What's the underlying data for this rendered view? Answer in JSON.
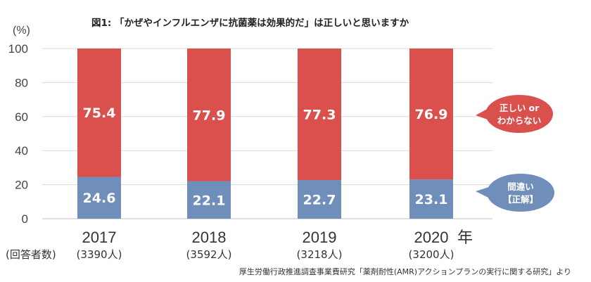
{
  "chart_data": {
    "type": "bar",
    "stacked": true,
    "title": "図1: 「かぜやインフルエンザに抗菌薬は効果的だ」は正しいと思いますか",
    "ylabel": "(%)",
    "ylim": [
      0,
      100
    ],
    "yticks": [
      "0",
      "20",
      "40",
      "60",
      "80",
      "100"
    ],
    "grid": true,
    "categories": [
      "2017",
      "2018",
      "2019",
      "2020"
    ],
    "x_unit": "年",
    "respondents_label": "(回答者数)",
    "respondents": [
      "(3390人)",
      "(3592人)",
      "(3218人)",
      "(3200人)"
    ],
    "series": [
      {
        "id": "wrong",
        "name_lines": [
          "間違い",
          "【正解】"
        ],
        "color": "#6f8fba",
        "values": [
          24.6,
          22.1,
          22.7,
          23.1
        ],
        "labels": [
          "24.6",
          "22.1",
          "22.7",
          "23.1"
        ]
      },
      {
        "id": "correct_or_unknown",
        "name_lines": [
          "正しい or",
          "わからない"
        ],
        "color": "#d9504c",
        "values": [
          75.4,
          77.9,
          77.3,
          76.9
        ],
        "labels": [
          "75.4",
          "77.9",
          "77.3",
          "76.9"
        ]
      }
    ],
    "source": "厚生労働行政推進調査事業費研究「薬剤耐性(AMR)アクションプランの実行に関する研究」より"
  }
}
